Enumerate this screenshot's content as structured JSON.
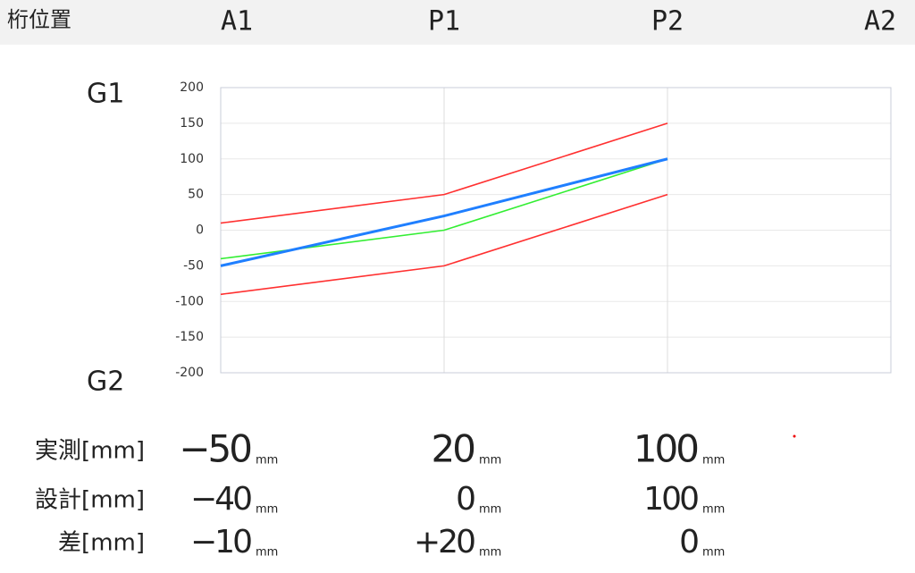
{
  "header": {
    "title": "桁位置"
  },
  "chart_data": {
    "type": "line",
    "top_label": "G1",
    "bottom_label": "G2",
    "categories": [
      "A1",
      "P1",
      "P2",
      "A2"
    ],
    "series": [
      {
        "color": "#ff3030",
        "values": [
          10,
          50,
          150,
          null
        ]
      },
      {
        "color": "#ff3030",
        "values": [
          -90,
          -50,
          50,
          null
        ]
      },
      {
        "color": "#33ee33",
        "values": [
          -40,
          0,
          100,
          null
        ]
      },
      {
        "color": "#1f7fff",
        "values": [
          -50,
          20,
          100,
          null
        ]
      }
    ],
    "ylim": [
      -200,
      200
    ],
    "yticks": [
      -200,
      -150,
      -100,
      -50,
      0,
      50,
      100,
      150,
      200
    ],
    "grid": true
  },
  "table": {
    "unit": "mm",
    "rows": [
      {
        "label": "実測[mm]",
        "values": [
          "−50",
          "20",
          "100"
        ]
      },
      {
        "label": "設計[mm]",
        "values": [
          "−40",
          "0",
          "100"
        ]
      },
      {
        "label": "差[mm]",
        "values": [
          "−10",
          "+20",
          "0"
        ]
      }
    ]
  }
}
